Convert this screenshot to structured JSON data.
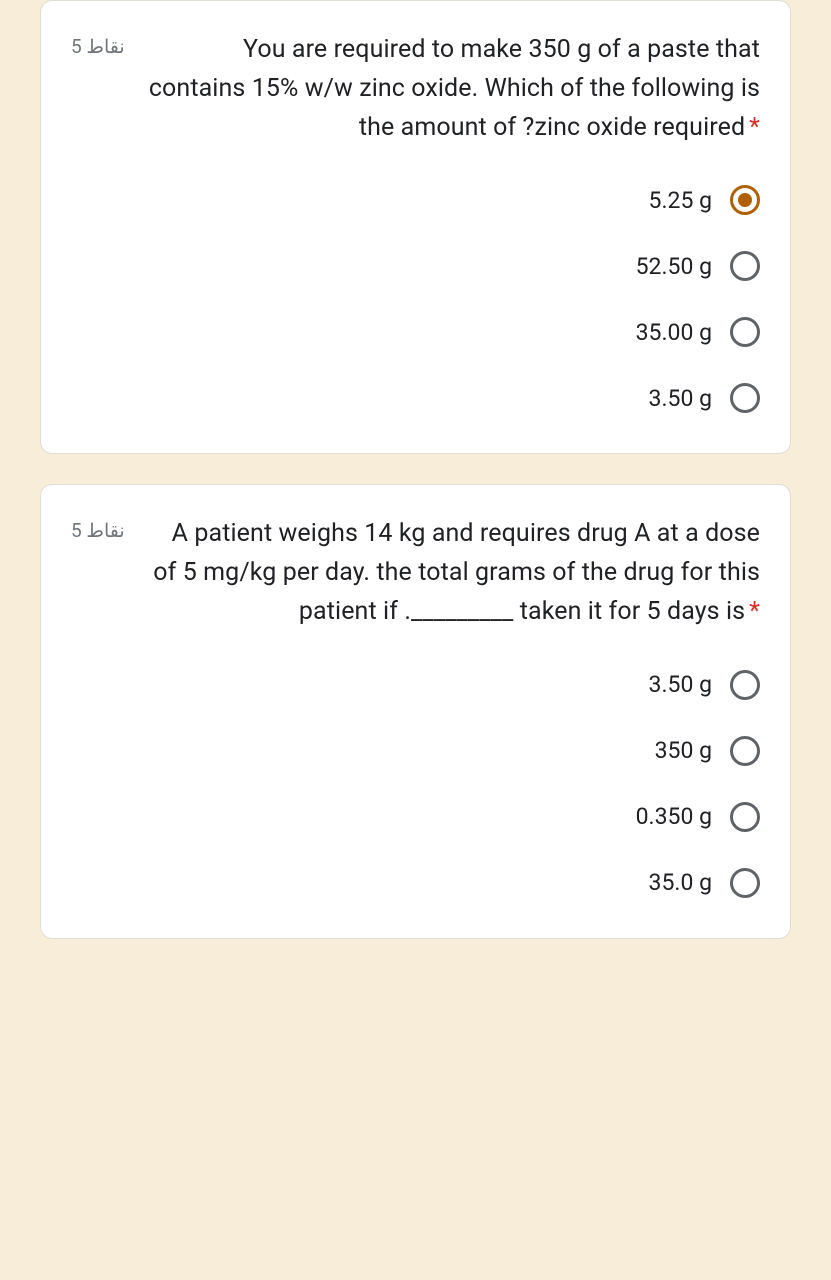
{
  "colors": {
    "page_background": "#f8edd8",
    "card_background": "#ffffff",
    "card_border": "#e0ddd5",
    "text_primary": "#202124",
    "text_secondary": "#70757a",
    "required_asterisk": "#d93025",
    "radio_unchecked": "#5f6368",
    "radio_checked": "#b06000"
  },
  "layout": {
    "card_border_radius": 12,
    "option_gap": 36
  },
  "questions": [
    {
      "points": "5 نقاط",
      "text": "You are required to make 350 g of a paste that contains 15% w/w zinc oxide. Which of the following is the amount of ?zinc oxide required",
      "required": true,
      "options": [
        {
          "label": "5.25 g",
          "selected": true
        },
        {
          "label": "52.50 g",
          "selected": false
        },
        {
          "label": "35.00 g",
          "selected": false
        },
        {
          "label": "3.50 g",
          "selected": false
        }
      ]
    },
    {
      "points": "5 نقاط",
      "text": "A patient weighs 14 kg and requires drug A at a dose of 5 mg/kg per day. the total grams of the drug for this patient if ._________ taken it for 5 days is",
      "required": true,
      "options": [
        {
          "label": "3.50 g",
          "selected": false
        },
        {
          "label": "350 g",
          "selected": false
        },
        {
          "label": "0.350 g",
          "selected": false
        },
        {
          "label": "35.0 g",
          "selected": false
        }
      ]
    }
  ]
}
